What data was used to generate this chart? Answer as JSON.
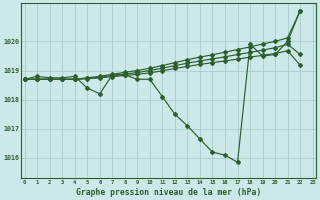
{
  "bg_color": "#cde8e8",
  "grid_color": "#a8cccc",
  "line_color": "#2d5e2d",
  "title": "Graphe pression niveau de la mer (hPa)",
  "ylim": [
    1015.3,
    1021.3
  ],
  "xlim": [
    -0.3,
    23.3
  ],
  "yticks": [
    1016,
    1017,
    1018,
    1019,
    1020
  ],
  "xticks": [
    0,
    1,
    2,
    3,
    4,
    5,
    6,
    7,
    8,
    9,
    10,
    11,
    12,
    13,
    14,
    15,
    16,
    17,
    18,
    19,
    20,
    21,
    22,
    23
  ],
  "y_actual": [
    1018.7,
    1018.8,
    1018.75,
    1018.75,
    1018.8,
    1018.4,
    1018.2,
    1018.85,
    1018.85,
    1018.7,
    1018.7,
    1018.1,
    1017.5,
    1017.1,
    1016.65,
    1016.2,
    1016.1,
    1015.85,
    1019.9,
    1019.5,
    1019.55,
    1020.0,
    1021.05
  ],
  "y_upper": [
    1018.7,
    1018.7,
    1018.7,
    1018.7,
    1018.7,
    1018.75,
    1018.8,
    1018.87,
    1018.94,
    1019.0,
    1019.08,
    1019.17,
    1019.27,
    1019.37,
    1019.46,
    1019.54,
    1019.63,
    1019.72,
    1019.81,
    1019.91,
    1020.0,
    1020.12,
    1021.05
  ],
  "y_mid": [
    1018.7,
    1018.7,
    1018.7,
    1018.7,
    1018.7,
    1018.73,
    1018.77,
    1018.83,
    1018.88,
    1018.93,
    1019.0,
    1019.08,
    1019.17,
    1019.25,
    1019.33,
    1019.4,
    1019.47,
    1019.55,
    1019.62,
    1019.7,
    1019.78,
    1019.9,
    1019.55
  ],
  "y_low": [
    1018.7,
    1018.7,
    1018.7,
    1018.7,
    1018.7,
    1018.72,
    1018.75,
    1018.79,
    1018.83,
    1018.87,
    1018.92,
    1018.99,
    1019.07,
    1019.14,
    1019.21,
    1019.27,
    1019.33,
    1019.39,
    1019.46,
    1019.52,
    1019.58,
    1019.68,
    1019.18
  ]
}
